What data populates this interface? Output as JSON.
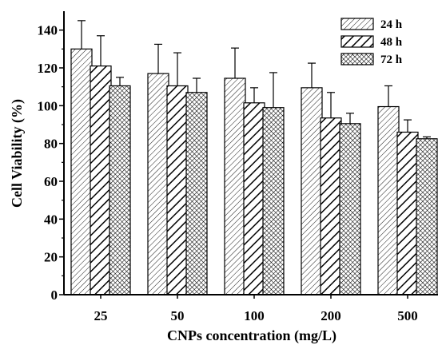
{
  "chart_data": {
    "type": "bar",
    "xlabel": "CNPs concentration (mg/L)",
    "ylabel": "Cell Viability (%)",
    "categories": [
      "25",
      "50",
      "100",
      "200",
      "500"
    ],
    "ylim": [
      0,
      150
    ],
    "yticks": [
      0,
      20,
      40,
      60,
      80,
      100,
      120,
      140
    ],
    "legend_position": "top-right",
    "grid": false,
    "series": [
      {
        "name": "24 h",
        "pattern": "light-diagonal-hatch",
        "values": [
          130,
          117,
          114.5,
          109.5,
          99.5
        ],
        "errors": [
          15,
          15.5,
          16,
          13,
          11
        ]
      },
      {
        "name": "48 h",
        "pattern": "bold-diagonal-hatch",
        "values": [
          121,
          110.5,
          101.5,
          93.5,
          86
        ],
        "errors": [
          16,
          17.5,
          8,
          13.5,
          6.5
        ]
      },
      {
        "name": "72 h",
        "pattern": "crosshatch",
        "values": [
          110.5,
          107,
          99,
          90.5,
          82.5
        ],
        "errors": [
          4.5,
          7.5,
          18.5,
          5.5,
          1
        ]
      }
    ]
  }
}
